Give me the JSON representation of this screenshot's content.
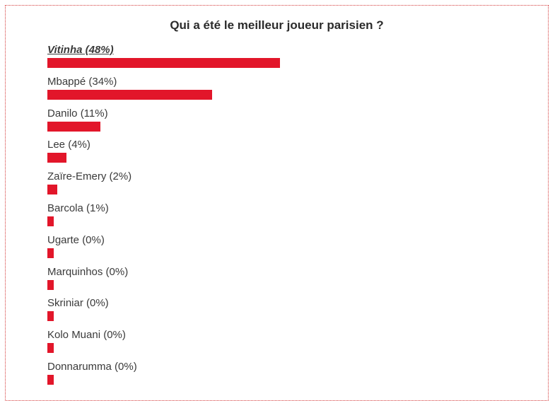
{
  "accent_color": "#e2162a",
  "chart_data": {
    "type": "bar",
    "orientation": "horizontal",
    "title": "Qui a été le meilleur joueur parisien ?",
    "categories": [
      "Vitinha",
      "Mbappé",
      "Danilo",
      "Lee",
      "Zaïre-Emery",
      "Barcola",
      "Ugarte",
      "Marquinhos",
      "Skriniar",
      "Kolo Muani",
      "Donnarumma"
    ],
    "labels": [
      "Vitinha (48%)",
      "Mbappé (34%)",
      "Danilo (11%)",
      "Lee (4%)",
      "Zaïre-Emery (2%)",
      "Barcola (1%)",
      "Ugarte (0%)",
      "Marquinhos (0%)",
      "Skriniar (0%)",
      "Kolo Muani (0%)",
      "Donnarumma (0%)"
    ],
    "values": [
      48,
      34,
      11,
      4,
      2,
      1,
      0,
      0,
      0,
      0,
      0
    ],
    "unit": "%",
    "highlighted": "Vitinha",
    "xlim": [
      0,
      100
    ]
  }
}
